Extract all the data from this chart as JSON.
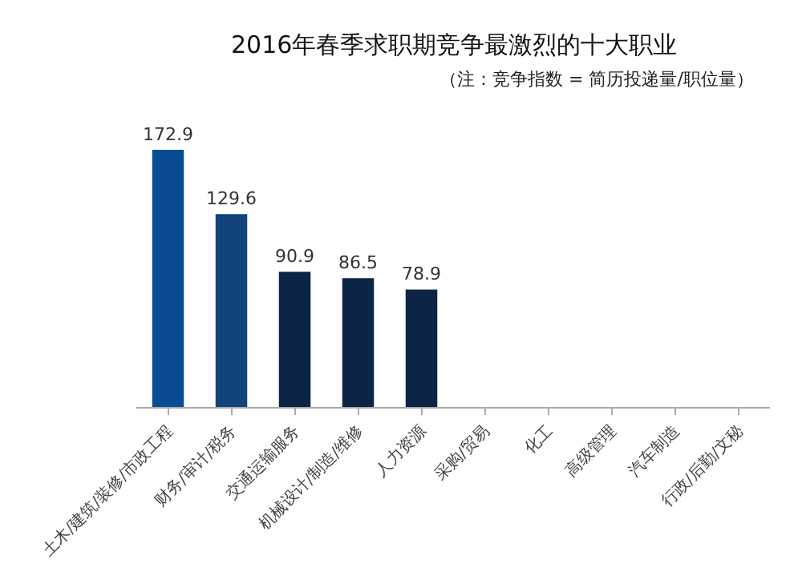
{
  "chart_data": {
    "type": "bar",
    "title": "2016年春季求职期竞争最激烈的十大职业",
    "subtitle": "（注：竞争指数 = 简历投递量/职位量）",
    "categories": [
      "土木/建筑/装修/市政工程",
      "财务/审计/税务",
      "交通运输服务",
      "机械设计/制造/维修",
      "人力资源",
      "采购/贸易",
      "化工",
      "高级管理",
      "汽车制造",
      "行政/后勤/文秘"
    ],
    "values": [
      172.9,
      129.6,
      90.9,
      86.5,
      78.9,
      null,
      null,
      null,
      null,
      null
    ],
    "colors": [
      "#0a4c94",
      "#12437a",
      "#0c2547",
      "#0c2547",
      "#0c2547",
      "#0c2547",
      "#0c2547",
      "#0c2547",
      "#0c2547",
      "#0c2547"
    ],
    "data_labels": true,
    "tick_labels": "x"
  }
}
